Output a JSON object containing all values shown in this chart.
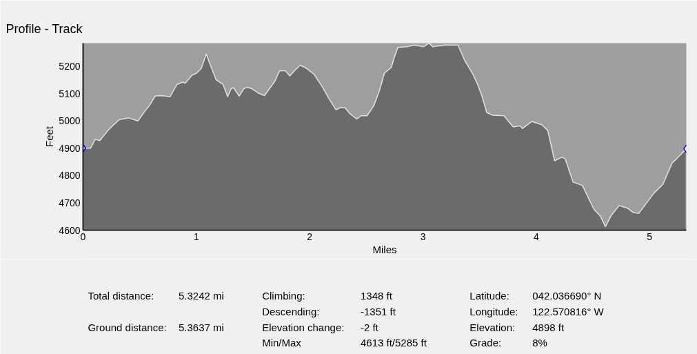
{
  "chart_data": {
    "type": "area",
    "title": "Profile - Track",
    "xlabel": "Miles",
    "ylabel": "Feet",
    "xlim": [
      0,
      5.3242
    ],
    "xticks": [
      0,
      1,
      2,
      3,
      4,
      5
    ],
    "ylim": [
      4600,
      5285
    ],
    "yticks": [
      4600,
      4700,
      4800,
      4900,
      5000,
      5100,
      5200
    ],
    "grid": false,
    "series": [
      {
        "color": "#6b6b6b",
        "x": [
          0,
          0.067,
          0.107,
          0.148,
          0.22,
          0.26,
          0.321,
          0.402,
          0.484,
          0.545,
          0.585,
          0.636,
          0.687,
          0.768,
          0.829,
          0.88,
          0.9,
          0.961,
          1.002,
          1.043,
          1.087,
          1.124,
          1.174,
          1.235,
          1.276,
          1.307,
          1.327,
          1.378,
          1.418,
          1.449,
          1.49,
          1.551,
          1.601,
          1.652,
          1.693,
          1.734,
          1.784,
          1.825,
          1.866,
          1.916,
          1.967,
          2.038,
          2.11,
          2.171,
          2.232,
          2.272,
          2.313,
          2.354,
          2.415,
          2.455,
          2.506,
          2.567,
          2.618,
          2.659,
          2.72,
          2.75,
          2.78,
          2.862,
          2.923,
          3.004,
          3.055,
          3.085,
          3.187,
          3.309,
          3.37,
          3.441,
          3.482,
          3.522,
          3.563,
          3.613,
          3.715,
          3.796,
          3.857,
          3.878,
          3.959,
          4.05,
          4.101,
          4.162,
          4.223,
          4.254,
          4.325,
          4.406,
          4.508,
          4.569,
          4.61,
          4.66,
          4.732,
          4.802,
          4.854,
          4.904,
          5.037,
          5.118,
          5.199,
          5.24,
          5.3242
        ],
        "values": [
          4900,
          4900,
          4933,
          4928,
          4965,
          4982,
          5005,
          5011,
          5000,
          5035,
          5056,
          5091,
          5093,
          5089,
          5134,
          5142,
          5138,
          5167,
          5175,
          5192,
          5245,
          5204,
          5151,
          5134,
          5089,
          5118,
          5122,
          5091,
          5118,
          5123,
          5118,
          5101,
          5093,
          5122,
          5146,
          5184,
          5184,
          5165,
          5184,
          5204,
          5194,
          5171,
          5126,
          5081,
          5041,
          5049,
          5048,
          5027,
          5007,
          5019,
          5019,
          5056,
          5114,
          5175,
          5196,
          5237,
          5270,
          5272,
          5278,
          5272,
          5285,
          5272,
          5278,
          5278,
          5220,
          5171,
          5134,
          5089,
          5031,
          5021,
          5019,
          4978,
          4982,
          4972,
          4998,
          4986,
          4965,
          4854,
          4867,
          4862,
          4776,
          4764,
          4677,
          4649,
          4613,
          4653,
          4690,
          4681,
          4665,
          4661,
          4735,
          4768,
          4846,
          4862,
          4898
        ]
      },
      {
        "type": "scatter",
        "color": "#0000ff",
        "marker": "diamond",
        "x": [
          0,
          5.3242
        ],
        "values": [
          4900,
          4898
        ]
      }
    ],
    "annotations": [
      "Total distance:",
      "5.3242 mi",
      "Ground distance:",
      "5.3637 mi",
      "Climbing:",
      "1348 ft",
      "Descending:",
      "-1351 ft",
      "Elevation change:",
      "-2 ft",
      "Min/Max",
      "4613 ft/5285 ft",
      "Latitude:",
      "042.036690° N",
      "Longitude:",
      "122.570816° W",
      "Elevation:",
      "4898 ft",
      "Grade:",
      "8%"
    ]
  }
}
